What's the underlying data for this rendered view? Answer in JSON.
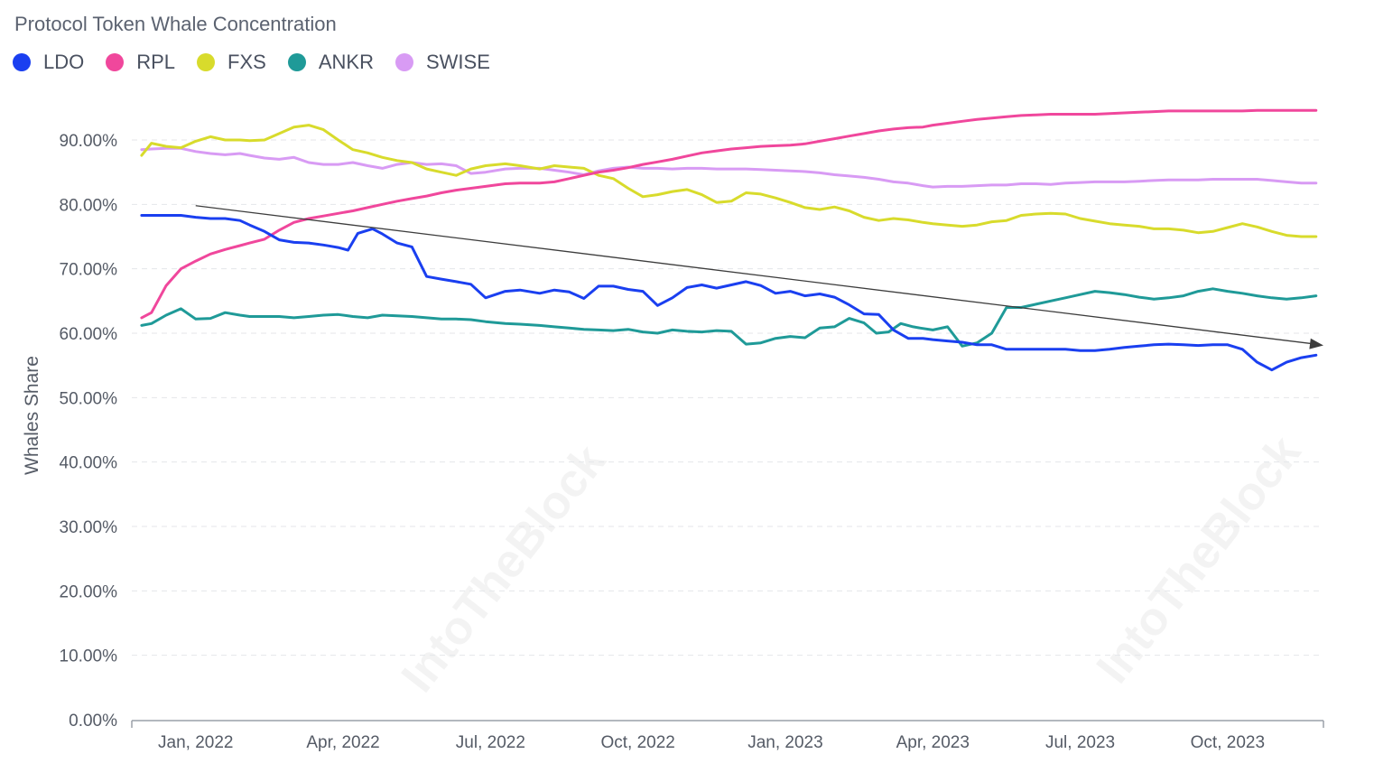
{
  "chart_data": {
    "type": "line",
    "title": "Protocol Token Whale Concentration",
    "ylabel": "Whales Share",
    "xlabel": "",
    "ylim": [
      0,
      90
    ],
    "yticks": [
      "0.00%",
      "10.00%",
      "20.00%",
      "30.00%",
      "40.00%",
      "50.00%",
      "60.00%",
      "70.00%",
      "80.00%",
      "90.00%"
    ],
    "ytick_values": [
      0,
      10,
      20,
      30,
      40,
      50,
      60,
      70,
      80,
      90
    ],
    "xlim_months": [
      -1.3,
      22.95
    ],
    "xticks": [
      {
        "label": "Jan, 2022",
        "month": 0
      },
      {
        "label": "Apr, 2022",
        "month": 3
      },
      {
        "label": "Jul, 2022",
        "month": 6
      },
      {
        "label": "Oct, 2022",
        "month": 9
      },
      {
        "label": "Jan, 2023",
        "month": 12
      },
      {
        "label": "Apr, 2023",
        "month": 15
      },
      {
        "label": "Jul, 2023",
        "month": 18
      },
      {
        "label": "Oct, 2023",
        "month": 21
      }
    ],
    "x_unit": "months since Jan 2022",
    "legend_position": "top-left",
    "grid": true,
    "series": [
      {
        "name": "LDO",
        "color": "#1a3ff0",
        "x": [
          -1.1,
          -0.9,
          -0.6,
          -0.3,
          0,
          0.3,
          0.6,
          0.9,
          1.1,
          1.4,
          1.7,
          2,
          2.3,
          2.6,
          2.75,
          2.9,
          3.1,
          3.3,
          3.6,
          3.8,
          4.1,
          4.4,
          4.7,
          5,
          5.3,
          5.6,
          5.9,
          6.3,
          6.6,
          7,
          7.3,
          7.6,
          7.9,
          8.2,
          8.5,
          8.8,
          9.1,
          9.4,
          9.7,
          10,
          10.3,
          10.6,
          10.9,
          11.2,
          11.5,
          11.8,
          12.1,
          12.4,
          12.7,
          13,
          13.3,
          13.6,
          13.9,
          14.2,
          14.5,
          14.8,
          15,
          15.3,
          15.6,
          15.9,
          16.2,
          16.5,
          16.8,
          17.1,
          17.4,
          17.7,
          18,
          18.3,
          18.6,
          18.9,
          19.2,
          19.5,
          19.8,
          20.1,
          20.4,
          20.7,
          21,
          21.3,
          21.6,
          21.9,
          22.2,
          22.5,
          22.8
        ],
        "y": [
          78.3,
          78.3,
          78.3,
          78.3,
          78,
          77.8,
          77.8,
          77.5,
          76.8,
          75.8,
          74.5,
          74.1,
          74,
          73.7,
          73.5,
          73.3,
          72.9,
          75.5,
          76.2,
          75.4,
          74,
          73.4,
          68.8,
          68.4,
          68,
          67.6,
          65.5,
          66.5,
          66.7,
          66.2,
          66.7,
          66.4,
          65.4,
          67.3,
          67.3,
          66.8,
          66.5,
          64.3,
          65.5,
          67.1,
          67.5,
          67,
          67.5,
          68,
          67.4,
          66.2,
          66.5,
          65.8,
          66.1,
          65.6,
          64.4,
          63,
          62.9,
          60.5,
          59.2,
          59.2,
          59,
          58.8,
          58.6,
          58.2,
          58.2,
          57.5,
          57.5,
          57.5,
          57.5,
          57.5,
          57.3,
          57.3,
          57.5,
          57.8,
          58,
          58.2,
          58.3,
          58.2,
          58.1,
          58.2,
          58.2,
          57.5,
          55.5,
          54.3,
          55.5,
          56.2,
          56.6
        ]
      },
      {
        "name": "RPL",
        "color": "#f0479c",
        "x": [
          -1.1,
          -0.9,
          -0.6,
          -0.3,
          0,
          0.3,
          0.6,
          0.9,
          1.1,
          1.4,
          1.7,
          2,
          2.3,
          2.6,
          2.9,
          3.2,
          3.5,
          3.8,
          4.1,
          4.4,
          4.7,
          5,
          5.3,
          5.6,
          5.9,
          6.3,
          6.6,
          7,
          7.3,
          7.6,
          7.9,
          8.2,
          8.5,
          8.8,
          9.1,
          9.4,
          9.7,
          10,
          10.3,
          10.6,
          10.9,
          11.2,
          11.5,
          11.8,
          12.1,
          12.4,
          12.7,
          13,
          13.3,
          13.6,
          13.9,
          14.2,
          14.5,
          14.8,
          15,
          15.3,
          15.6,
          15.9,
          16.2,
          16.5,
          16.8,
          17.1,
          17.4,
          17.7,
          18,
          18.3,
          18.6,
          18.9,
          19.2,
          19.5,
          19.8,
          20.1,
          20.4,
          20.7,
          21,
          21.3,
          21.6,
          21.9,
          22.2,
          22.5,
          22.8
        ],
        "y": [
          62.4,
          63.2,
          67.4,
          70,
          71.2,
          72.3,
          73,
          73.6,
          74,
          74.6,
          76,
          77.2,
          77.8,
          78.2,
          78.6,
          79,
          79.5,
          80,
          80.5,
          80.9,
          81.3,
          81.8,
          82.2,
          82.5,
          82.8,
          83.2,
          83.3,
          83.3,
          83.5,
          84,
          84.5,
          85,
          85.3,
          85.7,
          86.2,
          86.6,
          87,
          87.5,
          88,
          88.3,
          88.6,
          88.8,
          89,
          89.1,
          89.2,
          89.4,
          89.8,
          90.2,
          90.6,
          91,
          91.4,
          91.7,
          91.9,
          92,
          92.3,
          92.6,
          92.9,
          93.2,
          93.4,
          93.6,
          93.8,
          93.9,
          94,
          94,
          94,
          94,
          94.1,
          94.2,
          94.3,
          94.4,
          94.5,
          94.5,
          94.5,
          94.5,
          94.5,
          94.5,
          94.6,
          94.6,
          94.6,
          94.6,
          94.6
        ]
      },
      {
        "name": "FXS",
        "color": "#d8db2c",
        "x": [
          -1.1,
          -0.9,
          -0.6,
          -0.3,
          0,
          0.3,
          0.6,
          0.9,
          1.1,
          1.4,
          1.7,
          2,
          2.3,
          2.6,
          2.9,
          3.2,
          3.5,
          3.8,
          4.1,
          4.4,
          4.7,
          5,
          5.3,
          5.6,
          5.9,
          6.3,
          6.6,
          7,
          7.3,
          7.6,
          7.9,
          8.2,
          8.5,
          8.8,
          9.1,
          9.4,
          9.7,
          10,
          10.3,
          10.6,
          10.9,
          11.2,
          11.5,
          11.8,
          12.1,
          12.4,
          12.7,
          13,
          13.3,
          13.6,
          13.9,
          14.2,
          14.5,
          14.8,
          15,
          15.3,
          15.6,
          15.9,
          16.2,
          16.5,
          16.8,
          17.1,
          17.4,
          17.7,
          18,
          18.3,
          18.6,
          18.9,
          19.2,
          19.5,
          19.8,
          20.1,
          20.4,
          20.7,
          21,
          21.3,
          21.6,
          21.9,
          22.2,
          22.5,
          22.8
        ],
        "y": [
          87.6,
          89.5,
          89,
          88.8,
          89.8,
          90.5,
          90,
          90,
          89.9,
          90,
          91,
          92,
          92.3,
          91.6,
          90,
          88.5,
          88,
          87.3,
          86.8,
          86.5,
          85.5,
          85,
          84.5,
          85.5,
          86,
          86.3,
          86,
          85.5,
          86,
          85.8,
          85.6,
          84.5,
          84,
          82.5,
          81.2,
          81.5,
          82,
          82.3,
          81.5,
          80.3,
          80.5,
          81.8,
          81.6,
          81,
          80.3,
          79.5,
          79.2,
          79.6,
          79,
          78,
          77.5,
          77.8,
          77.6,
          77.2,
          77,
          76.8,
          76.6,
          76.8,
          77.3,
          77.5,
          78.3,
          78.5,
          78.6,
          78.5,
          77.8,
          77.4,
          77,
          76.8,
          76.6,
          76.2,
          76.2,
          76,
          75.6,
          75.8,
          76.4,
          77,
          76.5,
          75.8,
          75.2,
          75,
          75
        ]
      },
      {
        "name": "ANKR",
        "color": "#1f9a98",
        "x": [
          -1.1,
          -0.9,
          -0.6,
          -0.3,
          0,
          0.3,
          0.6,
          0.9,
          1.1,
          1.4,
          1.7,
          2,
          2.3,
          2.6,
          2.9,
          3.2,
          3.5,
          3.8,
          4.1,
          4.4,
          4.7,
          5,
          5.3,
          5.6,
          5.9,
          6.3,
          6.6,
          7,
          7.3,
          7.6,
          7.9,
          8.2,
          8.5,
          8.8,
          9.1,
          9.4,
          9.7,
          10,
          10.3,
          10.6,
          10.9,
          11.2,
          11.5,
          11.8,
          12.1,
          12.4,
          12.7,
          13,
          13.3,
          13.6,
          13.85,
          14.1,
          14.35,
          14.6,
          14.75,
          15,
          15.3,
          15.6,
          15.9,
          16.2,
          16.5,
          16.8,
          17.1,
          17.4,
          17.7,
          18,
          18.3,
          18.6,
          18.9,
          19.2,
          19.5,
          19.8,
          20.1,
          20.4,
          20.7,
          21,
          21.3,
          21.6,
          21.9,
          22.2,
          22.5,
          22.8
        ],
        "y": [
          61.2,
          61.5,
          62.8,
          63.8,
          62.2,
          62.3,
          63.2,
          62.8,
          62.6,
          62.6,
          62.6,
          62.4,
          62.6,
          62.8,
          62.9,
          62.6,
          62.4,
          62.8,
          62.7,
          62.6,
          62.4,
          62.2,
          62.2,
          62.1,
          61.8,
          61.5,
          61.4,
          61.2,
          61,
          60.8,
          60.6,
          60.5,
          60.4,
          60.6,
          60.2,
          60,
          60.5,
          60.3,
          60.2,
          60.4,
          60.3,
          58.3,
          58.5,
          59.2,
          59.5,
          59.3,
          60.8,
          61,
          62.3,
          61.6,
          60,
          60.2,
          61.5,
          61,
          60.8,
          60.5,
          61,
          58,
          58.5,
          60,
          64,
          64,
          64.5,
          65,
          65.5,
          66,
          66.5,
          66.3,
          66,
          65.6,
          65.3,
          65.5,
          65.8,
          66.5,
          66.9,
          66.5,
          66.2,
          65.8,
          65.5,
          65.3,
          65.5,
          65.8
        ]
      },
      {
        "name": "SWISE",
        "color": "#d89bf4",
        "x": [
          -1.1,
          -0.9,
          -0.6,
          -0.3,
          0,
          0.3,
          0.6,
          0.9,
          1.1,
          1.4,
          1.7,
          2,
          2.3,
          2.6,
          2.9,
          3.2,
          3.5,
          3.8,
          4.1,
          4.4,
          4.7,
          5,
          5.3,
          5.6,
          5.9,
          6.3,
          6.6,
          7,
          7.3,
          7.6,
          7.9,
          8.2,
          8.5,
          8.8,
          9.1,
          9.4,
          9.7,
          10,
          10.3,
          10.6,
          10.9,
          11.2,
          11.5,
          11.8,
          12.1,
          12.4,
          12.7,
          13,
          13.3,
          13.6,
          13.9,
          14.2,
          14.5,
          14.8,
          15,
          15.3,
          15.6,
          15.9,
          16.2,
          16.5,
          16.8,
          17.1,
          17.4,
          17.7,
          18,
          18.3,
          18.6,
          18.9,
          19.2,
          19.5,
          19.8,
          20.1,
          20.4,
          20.7,
          21,
          21.3,
          21.6,
          21.9,
          22.2,
          22.5,
          22.8
        ],
        "y": [
          88.5,
          88.6,
          88.7,
          88.7,
          88.2,
          87.9,
          87.7,
          87.9,
          87.6,
          87.2,
          87,
          87.3,
          86.5,
          86.2,
          86.2,
          86.5,
          86,
          85.6,
          86.2,
          86.5,
          86.2,
          86.3,
          86,
          84.8,
          85,
          85.5,
          85.6,
          85.6,
          85.3,
          85,
          84.6,
          85.2,
          85.6,
          85.8,
          85.6,
          85.6,
          85.5,
          85.6,
          85.6,
          85.5,
          85.5,
          85.5,
          85.4,
          85.3,
          85.2,
          85.1,
          84.9,
          84.6,
          84.4,
          84.2,
          83.9,
          83.5,
          83.3,
          82.9,
          82.7,
          82.8,
          82.8,
          82.9,
          83,
          83,
          83.2,
          83.2,
          83.1,
          83.3,
          83.4,
          83.5,
          83.5,
          83.5,
          83.6,
          83.7,
          83.8,
          83.8,
          83.8,
          83.9,
          83.9,
          83.9,
          83.9,
          83.7,
          83.5,
          83.3,
          83.3
        ]
      }
    ],
    "annotations": [
      {
        "type": "trend-arrow",
        "from": {
          "month": 0,
          "value": 79.8
        },
        "to": {
          "month": 22.95,
          "value": 58.1
        }
      }
    ]
  },
  "watermark": "IntoTheBlock",
  "colors": {
    "grid": "#e4e6ea",
    "axis": "#9aa0a8",
    "arrow": "#3d3d3d"
  }
}
